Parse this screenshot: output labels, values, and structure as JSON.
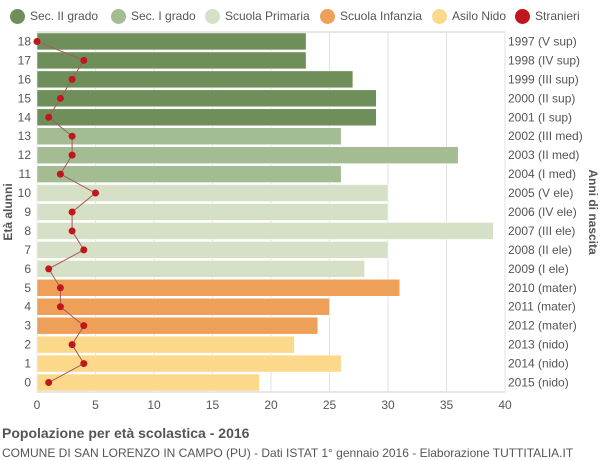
{
  "legend": [
    {
      "label": "Sec. II grado",
      "color": "#6f8f5a"
    },
    {
      "label": "Sec. I grado",
      "color": "#a3bc92"
    },
    {
      "label": "Scuola Primaria",
      "color": "#d5e0c6"
    },
    {
      "label": "Scuola Infanzia",
      "color": "#ee9f58"
    },
    {
      "label": "Asilo Nido",
      "color": "#fcd98a"
    },
    {
      "label": "Stranieri",
      "color": "#c0161c"
    }
  ],
  "footer": {
    "title": "Popolazione per età scolastica - 2016",
    "subtitle": "COMUNE DI SAN LORENZO IN CAMPO (PU) - Dati ISTAT 1° gennaio 2016 - Elaborazione TUTTITALIA.IT"
  },
  "chart_data": {
    "type": "bar",
    "orientation": "horizontal",
    "ylabel_left": "Età alunni",
    "ylabel_right": "Anni di nascita",
    "xlim": [
      0,
      40
    ],
    "x_ticks": [
      0,
      5,
      10,
      15,
      20,
      25,
      30,
      35,
      40
    ],
    "grid": true,
    "rows": [
      {
        "age": "18",
        "birth": "1997 (V sup)",
        "value": 23,
        "stranieri": 0,
        "group": 0
      },
      {
        "age": "17",
        "birth": "1998 (IV sup)",
        "value": 23,
        "stranieri": 4,
        "group": 0
      },
      {
        "age": "16",
        "birth": "1999 (III sup)",
        "value": 27,
        "stranieri": 3,
        "group": 0
      },
      {
        "age": "15",
        "birth": "2000 (II sup)",
        "value": 29,
        "stranieri": 2,
        "group": 0
      },
      {
        "age": "14",
        "birth": "2001 (I sup)",
        "value": 29,
        "stranieri": 1,
        "group": 0
      },
      {
        "age": "13",
        "birth": "2002 (III med)",
        "value": 26,
        "stranieri": 3,
        "group": 1
      },
      {
        "age": "12",
        "birth": "2003 (II med)",
        "value": 36,
        "stranieri": 3,
        "group": 1
      },
      {
        "age": "11",
        "birth": "2004 (I med)",
        "value": 26,
        "stranieri": 2,
        "group": 1
      },
      {
        "age": "10",
        "birth": "2005 (V ele)",
        "value": 30,
        "stranieri": 5,
        "group": 2
      },
      {
        "age": "9",
        "birth": "2006 (IV ele)",
        "value": 30,
        "stranieri": 3,
        "group": 2
      },
      {
        "age": "8",
        "birth": "2007 (III ele)",
        "value": 39,
        "stranieri": 3,
        "group": 2
      },
      {
        "age": "7",
        "birth": "2008 (II ele)",
        "value": 30,
        "stranieri": 4,
        "group": 2
      },
      {
        "age": "6",
        "birth": "2009 (I ele)",
        "value": 28,
        "stranieri": 1,
        "group": 2
      },
      {
        "age": "5",
        "birth": "2010 (mater)",
        "value": 31,
        "stranieri": 2,
        "group": 3
      },
      {
        "age": "4",
        "birth": "2011 (mater)",
        "value": 25,
        "stranieri": 2,
        "group": 3
      },
      {
        "age": "3",
        "birth": "2012 (mater)",
        "value": 24,
        "stranieri": 4,
        "group": 3
      },
      {
        "age": "2",
        "birth": "2013 (nido)",
        "value": 22,
        "stranieri": 3,
        "group": 4
      },
      {
        "age": "1",
        "birth": "2014 (nido)",
        "value": 26,
        "stranieri": 4,
        "group": 4
      },
      {
        "age": "0",
        "birth": "2015 (nido)",
        "value": 19,
        "stranieri": 1,
        "group": 4
      }
    ]
  }
}
